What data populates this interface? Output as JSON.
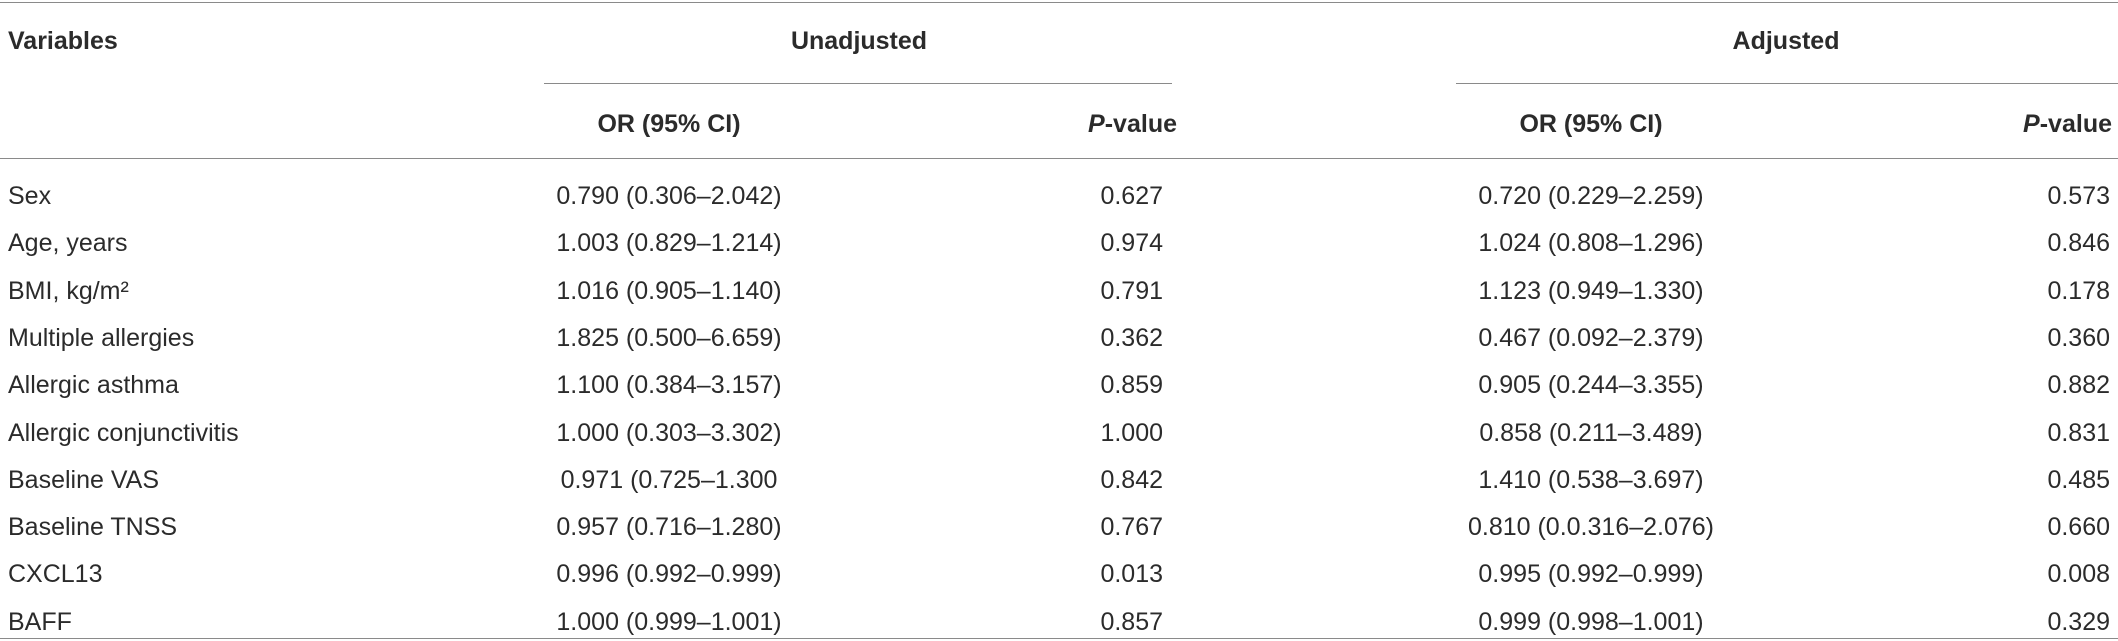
{
  "table": {
    "header": {
      "variables": "Variables",
      "groups": [
        "Unadjusted",
        "Adjusted"
      ],
      "or_label": "OR (95% CI)",
      "p_label": {
        "italic": "P",
        "text": "-value"
      }
    },
    "rows": [
      [
        "Sex",
        "0.790 (0.306–2.042)",
        "0.627",
        "0.720 (0.229–2.259)",
        "0.573"
      ],
      [
        "Age, years",
        "1.003 (0.829–1.214)",
        "0.974",
        "1.024 (0.808–1.296)",
        "0.846"
      ],
      [
        "BMI, kg/m²",
        "1.016 (0.905–1.140)",
        "0.791",
        "1.123 (0.949–1.330)",
        "0.178"
      ],
      [
        "Multiple allergies",
        "1.825 (0.500–6.659)",
        "0.362",
        "0.467 (0.092–2.379)",
        "0.360"
      ],
      [
        "Allergic asthma",
        "1.100 (0.384–3.157)",
        "0.859",
        "0.905 (0.244–3.355)",
        "0.882"
      ],
      [
        "Allergic conjunctivitis",
        "1.000 (0.303–3.302)",
        "1.000",
        "0.858 (0.211–3.489)",
        "0.831"
      ],
      [
        "Baseline VAS",
        "0.971 (0.725–1.300",
        "0.842",
        "1.410 (0.538–3.697)",
        "0.485"
      ],
      [
        "Baseline TNSS",
        "0.957 (0.716–1.280)",
        "0.767",
        "0.810 (0.0.316–2.076)",
        "0.660"
      ],
      [
        "CXCL13",
        "0.996 (0.992–0.999)",
        "0.013",
        "0.995 (0.992–0.999)",
        "0.008"
      ],
      [
        "BAFF",
        "1.000 (0.999–1.001)",
        "0.857",
        "0.999 (0.998–1.001)",
        "0.329"
      ]
    ]
  }
}
